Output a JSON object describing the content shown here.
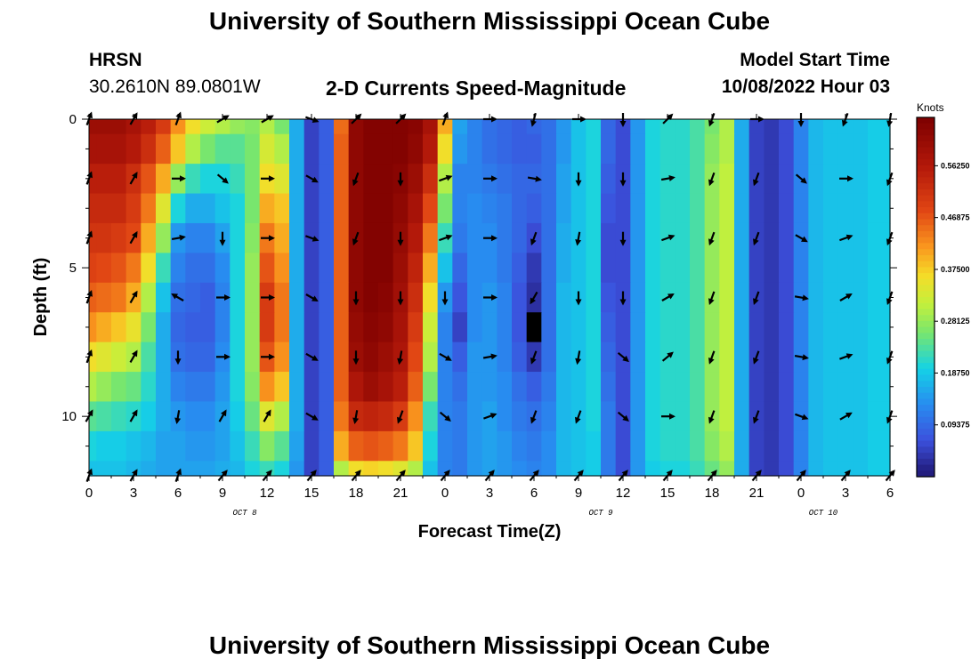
{
  "header": {
    "title": "University of Southern Mississippi Ocean Cube",
    "station": "HRSN",
    "coords": "30.2610N  89.0801W",
    "subtitle": "2-D Currents Speed-Magnitude",
    "model_start_label": "Model Start Time",
    "model_start_value": "10/08/2022 Hour 03"
  },
  "footer": {
    "title": "University of Southern Mississippi Ocean Cube"
  },
  "chart_data": {
    "type": "heatmap",
    "title": "2-D Currents Speed-Magnitude",
    "xlabel": "Forecast Time(Z)",
    "ylabel": "Depth (ft)",
    "x_ticks": [
      "0",
      "3",
      "6",
      "9",
      "12",
      "15",
      "18",
      "21",
      "0",
      "3",
      "6",
      "9",
      "12",
      "15",
      "18",
      "21",
      "0",
      "3",
      "6"
    ],
    "day_labels": [
      {
        "label": "OCT 8",
        "at_tick": 3.5
      },
      {
        "label": "OCT 9",
        "at_tick": 11.5
      },
      {
        "label": "OCT 10",
        "at_tick": 16.5
      }
    ],
    "y_ticks": [
      "0",
      "5",
      "10"
    ],
    "ylim": [
      0,
      12
    ],
    "xlim_hours": [
      0,
      54
    ],
    "colorbar": {
      "title": "Knots",
      "range": [
        0,
        0.65
      ],
      "ticks": [
        "0.09375",
        "0.18750",
        "0.28125",
        "0.37500",
        "0.46875",
        "0.56250"
      ]
    },
    "depths_ft": [
      0,
      1,
      2,
      3,
      4,
      5,
      6,
      7,
      8,
      9,
      10,
      11,
      12
    ],
    "time_hours": [
      0,
      1,
      2,
      3,
      4,
      5,
      6,
      7,
      8,
      9,
      10,
      11,
      12,
      13,
      14,
      15,
      16,
      17,
      18,
      19,
      20,
      21,
      22,
      23,
      24,
      25,
      26,
      27,
      28,
      29,
      30,
      31,
      32,
      33,
      34,
      35,
      36,
      37,
      38,
      39,
      40,
      41,
      42,
      43,
      44,
      45,
      46,
      47,
      48,
      49,
      50,
      51,
      52,
      53,
      54
    ],
    "speed_knots": [
      [
        0.6,
        0.6,
        0.6,
        0.58,
        0.55,
        0.5,
        0.42,
        0.36,
        0.32,
        0.3,
        0.28,
        0.27,
        0.3,
        0.26,
        0.16,
        0.05,
        0.08,
        0.45,
        0.62,
        0.64,
        0.64,
        0.64,
        0.63,
        0.58,
        0.4,
        0.15,
        0.12,
        0.1,
        0.09,
        0.08,
        0.09,
        0.1,
        0.14,
        0.18,
        0.2,
        0.09,
        0.06,
        0.14,
        0.2,
        0.21,
        0.21,
        0.23,
        0.26,
        0.3,
        0.16,
        0.05,
        0.04,
        0.06,
        0.12,
        0.17,
        0.18,
        0.18,
        0.18,
        0.19,
        0.19
      ],
      [
        0.58,
        0.58,
        0.58,
        0.56,
        0.52,
        0.46,
        0.38,
        0.3,
        0.26,
        0.24,
        0.24,
        0.26,
        0.33,
        0.3,
        0.16,
        0.05,
        0.08,
        0.46,
        0.62,
        0.64,
        0.64,
        0.64,
        0.62,
        0.56,
        0.36,
        0.14,
        0.12,
        0.1,
        0.09,
        0.08,
        0.08,
        0.1,
        0.14,
        0.18,
        0.2,
        0.09,
        0.06,
        0.14,
        0.2,
        0.21,
        0.21,
        0.23,
        0.27,
        0.3,
        0.16,
        0.05,
        0.04,
        0.06,
        0.12,
        0.17,
        0.18,
        0.18,
        0.18,
        0.19,
        0.19
      ],
      [
        0.55,
        0.55,
        0.55,
        0.52,
        0.47,
        0.4,
        0.28,
        0.22,
        0.2,
        0.2,
        0.22,
        0.26,
        0.36,
        0.34,
        0.16,
        0.05,
        0.08,
        0.46,
        0.62,
        0.64,
        0.64,
        0.63,
        0.6,
        0.52,
        0.3,
        0.12,
        0.12,
        0.11,
        0.1,
        0.09,
        0.09,
        0.1,
        0.15,
        0.18,
        0.2,
        0.08,
        0.06,
        0.14,
        0.2,
        0.21,
        0.21,
        0.23,
        0.28,
        0.31,
        0.16,
        0.05,
        0.04,
        0.06,
        0.12,
        0.17,
        0.18,
        0.18,
        0.18,
        0.19,
        0.19
      ],
      [
        0.53,
        0.53,
        0.53,
        0.5,
        0.44,
        0.34,
        0.2,
        0.16,
        0.16,
        0.18,
        0.2,
        0.26,
        0.4,
        0.38,
        0.16,
        0.05,
        0.08,
        0.46,
        0.62,
        0.64,
        0.64,
        0.62,
        0.58,
        0.48,
        0.26,
        0.12,
        0.13,
        0.12,
        0.11,
        0.09,
        0.08,
        0.1,
        0.15,
        0.18,
        0.2,
        0.07,
        0.06,
        0.14,
        0.2,
        0.21,
        0.21,
        0.23,
        0.28,
        0.31,
        0.16,
        0.05,
        0.04,
        0.06,
        0.12,
        0.17,
        0.18,
        0.18,
        0.18,
        0.19,
        0.19
      ],
      [
        0.51,
        0.51,
        0.5,
        0.48,
        0.4,
        0.28,
        0.14,
        0.12,
        0.12,
        0.15,
        0.2,
        0.27,
        0.44,
        0.4,
        0.16,
        0.05,
        0.08,
        0.46,
        0.62,
        0.64,
        0.64,
        0.61,
        0.56,
        0.44,
        0.22,
        0.11,
        0.13,
        0.13,
        0.11,
        0.09,
        0.06,
        0.1,
        0.16,
        0.18,
        0.2,
        0.06,
        0.06,
        0.14,
        0.2,
        0.21,
        0.21,
        0.23,
        0.28,
        0.31,
        0.16,
        0.05,
        0.04,
        0.06,
        0.12,
        0.17,
        0.18,
        0.18,
        0.18,
        0.19,
        0.19
      ],
      [
        0.49,
        0.48,
        0.47,
        0.44,
        0.36,
        0.22,
        0.12,
        0.1,
        0.1,
        0.13,
        0.2,
        0.28,
        0.47,
        0.42,
        0.16,
        0.05,
        0.08,
        0.46,
        0.62,
        0.64,
        0.64,
        0.6,
        0.54,
        0.4,
        0.18,
        0.09,
        0.13,
        0.13,
        0.11,
        0.08,
        0.04,
        0.1,
        0.16,
        0.18,
        0.2,
        0.06,
        0.06,
        0.14,
        0.2,
        0.21,
        0.21,
        0.23,
        0.28,
        0.31,
        0.16,
        0.05,
        0.04,
        0.06,
        0.12,
        0.17,
        0.18,
        0.18,
        0.18,
        0.19,
        0.19
      ],
      [
        0.46,
        0.45,
        0.44,
        0.4,
        0.3,
        0.18,
        0.1,
        0.09,
        0.08,
        0.12,
        0.2,
        0.28,
        0.5,
        0.44,
        0.16,
        0.05,
        0.08,
        0.46,
        0.62,
        0.64,
        0.63,
        0.59,
        0.52,
        0.36,
        0.14,
        0.07,
        0.13,
        0.14,
        0.12,
        0.07,
        0.03,
        0.1,
        0.17,
        0.18,
        0.2,
        0.07,
        0.06,
        0.14,
        0.2,
        0.21,
        0.21,
        0.23,
        0.28,
        0.31,
        0.16,
        0.05,
        0.04,
        0.06,
        0.12,
        0.17,
        0.18,
        0.18,
        0.18,
        0.19,
        0.19
      ],
      [
        0.42,
        0.4,
        0.38,
        0.35,
        0.26,
        0.16,
        0.09,
        0.08,
        0.08,
        0.12,
        0.2,
        0.28,
        0.5,
        0.44,
        0.16,
        0.05,
        0.08,
        0.46,
        0.61,
        0.63,
        0.62,
        0.58,
        0.5,
        0.32,
        0.12,
        0.05,
        0.13,
        0.14,
        0.12,
        0.07,
        0.0,
        0.1,
        0.17,
        0.18,
        0.2,
        0.08,
        0.06,
        0.14,
        0.2,
        0.21,
        0.21,
        0.23,
        0.28,
        0.31,
        0.16,
        0.05,
        0.04,
        0.06,
        0.12,
        0.17,
        0.18,
        0.18,
        0.18,
        0.19,
        0.19
      ],
      [
        0.36,
        0.34,
        0.32,
        0.3,
        0.23,
        0.16,
        0.1,
        0.09,
        0.09,
        0.13,
        0.2,
        0.28,
        0.47,
        0.42,
        0.16,
        0.05,
        0.08,
        0.46,
        0.6,
        0.62,
        0.6,
        0.57,
        0.48,
        0.3,
        0.12,
        0.08,
        0.14,
        0.14,
        0.12,
        0.08,
        0.04,
        0.1,
        0.17,
        0.18,
        0.2,
        0.09,
        0.06,
        0.14,
        0.2,
        0.21,
        0.21,
        0.23,
        0.28,
        0.31,
        0.16,
        0.05,
        0.04,
        0.06,
        0.12,
        0.17,
        0.18,
        0.18,
        0.18,
        0.19,
        0.19
      ],
      [
        0.3,
        0.28,
        0.26,
        0.25,
        0.21,
        0.16,
        0.12,
        0.11,
        0.11,
        0.14,
        0.2,
        0.27,
        0.42,
        0.38,
        0.16,
        0.05,
        0.08,
        0.46,
        0.57,
        0.6,
        0.58,
        0.55,
        0.46,
        0.26,
        0.12,
        0.1,
        0.14,
        0.14,
        0.13,
        0.1,
        0.08,
        0.11,
        0.17,
        0.18,
        0.2,
        0.1,
        0.06,
        0.14,
        0.2,
        0.21,
        0.21,
        0.23,
        0.28,
        0.31,
        0.16,
        0.05,
        0.04,
        0.06,
        0.12,
        0.17,
        0.18,
        0.18,
        0.18,
        0.19,
        0.19
      ],
      [
        0.24,
        0.23,
        0.22,
        0.21,
        0.19,
        0.16,
        0.14,
        0.13,
        0.13,
        0.15,
        0.19,
        0.25,
        0.34,
        0.3,
        0.16,
        0.05,
        0.08,
        0.44,
        0.53,
        0.54,
        0.53,
        0.5,
        0.42,
        0.22,
        0.12,
        0.11,
        0.14,
        0.15,
        0.13,
        0.11,
        0.1,
        0.12,
        0.17,
        0.18,
        0.2,
        0.11,
        0.06,
        0.14,
        0.2,
        0.21,
        0.21,
        0.23,
        0.28,
        0.31,
        0.16,
        0.05,
        0.04,
        0.06,
        0.12,
        0.17,
        0.18,
        0.18,
        0.18,
        0.19,
        0.19
      ],
      [
        0.2,
        0.19,
        0.19,
        0.18,
        0.17,
        0.15,
        0.15,
        0.14,
        0.14,
        0.15,
        0.18,
        0.22,
        0.27,
        0.24,
        0.15,
        0.05,
        0.08,
        0.4,
        0.46,
        0.47,
        0.46,
        0.44,
        0.38,
        0.2,
        0.12,
        0.11,
        0.14,
        0.15,
        0.14,
        0.12,
        0.11,
        0.13,
        0.17,
        0.18,
        0.19,
        0.11,
        0.06,
        0.14,
        0.2,
        0.21,
        0.21,
        0.23,
        0.27,
        0.3,
        0.16,
        0.05,
        0.04,
        0.06,
        0.12,
        0.17,
        0.18,
        0.18,
        0.18,
        0.19,
        0.19
      ],
      [
        0.18,
        0.18,
        0.18,
        0.17,
        0.16,
        0.15,
        0.15,
        0.15,
        0.15,
        0.16,
        0.17,
        0.2,
        0.22,
        0.2,
        0.14,
        0.05,
        0.08,
        0.3,
        0.36,
        0.37,
        0.36,
        0.34,
        0.3,
        0.18,
        0.12,
        0.11,
        0.14,
        0.15,
        0.14,
        0.13,
        0.12,
        0.13,
        0.17,
        0.18,
        0.19,
        0.11,
        0.06,
        0.14,
        0.19,
        0.2,
        0.2,
        0.22,
        0.25,
        0.28,
        0.16,
        0.05,
        0.04,
        0.06,
        0.12,
        0.17,
        0.18,
        0.18,
        0.18,
        0.19,
        0.19
      ]
    ],
    "vector_hours": [
      0,
      3,
      6,
      9,
      12,
      15,
      18,
      21,
      24,
      27,
      30,
      33,
      36,
      39,
      42,
      45,
      48,
      51,
      54
    ],
    "vector_depths_ft": [
      0,
      2,
      4,
      6,
      8,
      10,
      12
    ],
    "vector_directions_deg": [
      [
        20,
        30,
        20,
        60,
        60,
        110,
        45,
        45,
        20,
        90,
        195,
        90,
        180,
        45,
        200,
        90,
        180,
        200,
        190
      ],
      [
        20,
        30,
        90,
        130,
        90,
        120,
        200,
        180,
        70,
        90,
        100,
        180,
        180,
        80,
        200,
        200,
        130,
        90,
        200
      ],
      [
        20,
        30,
        80,
        180,
        90,
        110,
        200,
        180,
        70,
        90,
        200,
        190,
        180,
        70,
        200,
        200,
        120,
        70,
        200
      ],
      [
        20,
        30,
        300,
        90,
        90,
        120,
        180,
        180,
        180,
        90,
        210,
        180,
        180,
        60,
        200,
        200,
        100,
        60,
        200
      ],
      [
        20,
        30,
        180,
        90,
        90,
        120,
        180,
        190,
        120,
        80,
        200,
        190,
        130,
        50,
        200,
        200,
        100,
        70,
        200
      ],
      [
        30,
        30,
        190,
        30,
        30,
        120,
        190,
        200,
        130,
        70,
        200,
        200,
        130,
        90,
        200,
        200,
        110,
        60,
        200
      ],
      [
        20,
        30,
        20,
        40,
        40,
        40,
        40,
        40,
        40,
        40,
        40,
        40,
        40,
        40,
        40,
        40,
        40,
        40,
        40
      ]
    ]
  }
}
